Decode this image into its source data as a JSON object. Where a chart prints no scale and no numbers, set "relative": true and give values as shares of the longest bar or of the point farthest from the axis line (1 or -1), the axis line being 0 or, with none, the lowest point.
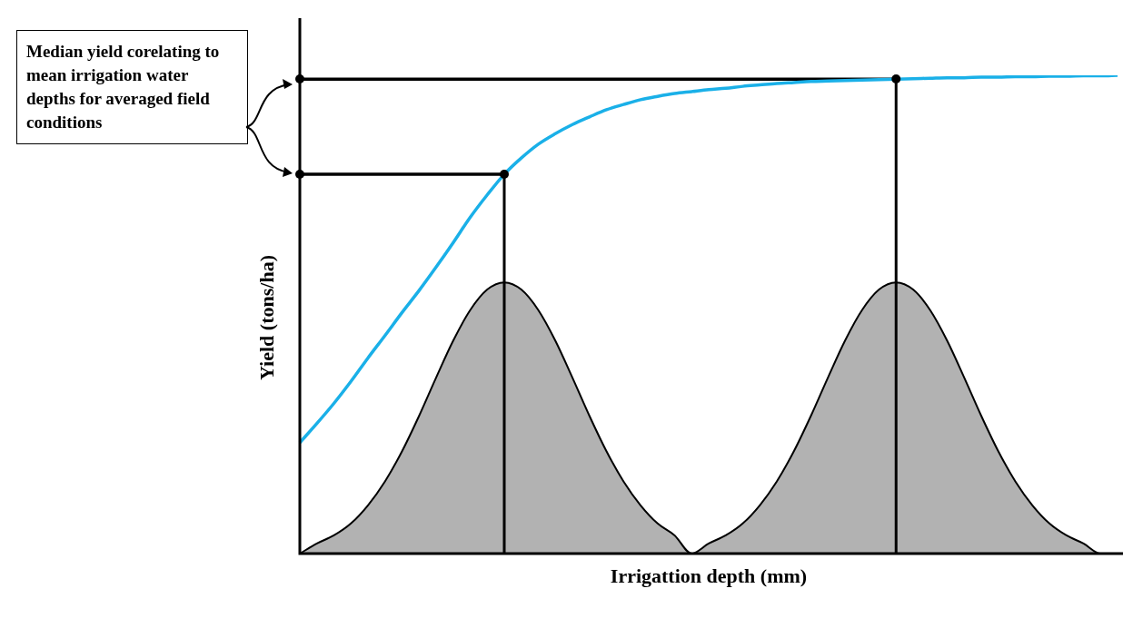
{
  "chart_data": {
    "type": "line",
    "relative": true,
    "xlabel": "Irrigattion depth (mm)",
    "ylabel": "Yield (tons/ha)",
    "legend": false,
    "annotations": [
      "Median yield corelating to mean irrigation water depths for averaged field conditions"
    ],
    "categories": [
      null,
      null,
      null,
      null,
      null,
      null,
      null,
      null,
      null,
      null,
      null,
      null,
      null,
      null,
      null,
      null,
      null,
      null,
      null,
      null,
      null,
      null,
      null,
      null,
      null,
      null,
      null,
      null,
      null,
      null,
      null,
      null,
      null,
      null,
      null,
      null,
      null,
      null,
      null,
      null,
      null,
      null,
      null,
      null,
      null,
      null,
      null,
      null,
      null
    ],
    "series": [
      {
        "type": "area",
        "color": "#000000",
        "values": [
          0,
          0.021,
          0.038,
          0.063,
          0.101,
          0.151,
          0.214,
          0.288,
          0.368,
          0.445,
          0.509,
          0.552,
          0.567,
          0.552,
          0.509,
          0.445,
          0.368,
          0.288,
          0.214,
          0.151,
          0.101,
          0.063,
          0.038,
          0,
          0.021,
          0.038,
          0.063,
          0.101,
          0.151,
          0.214,
          0.288,
          0.368,
          0.445,
          0.509,
          0.552,
          0.567,
          0.552,
          0.509,
          0.445,
          0.368,
          0.288,
          0.214,
          0.151,
          0.101,
          0.063,
          0.038,
          0.021,
          0,
          0
        ]
      },
      {
        "color": "#1ab0e8",
        "values": [
          0.232,
          0.272,
          0.314,
          0.36,
          0.409,
          0.456,
          0.504,
          0.55,
          0.599,
          0.65,
          0.703,
          0.75,
          0.793,
          0.827,
          0.856,
          0.878,
          0.897,
          0.913,
          0.928,
          0.939,
          0.949,
          0.956,
          0.962,
          0.966,
          0.97,
          0.973,
          0.977,
          0.98,
          0.983,
          0.985,
          0.987,
          0.988,
          0.989,
          0.99,
          0.991,
          0.992,
          0.993,
          0.994,
          0.995,
          0.995,
          0.996,
          0.996,
          0.997,
          0.997,
          0.998,
          0.998,
          0.999,
          0.999,
          1
        ]
      },
      {
        "color": "#000000",
        "values": [
          0.992,
          0.992,
          0.992,
          0.992,
          0.992,
          0.992,
          0.992,
          0.992,
          0.992,
          0.992,
          0.992,
          0.992,
          0.992,
          0.992,
          0.992,
          0.992,
          0.992,
          0.992,
          0.992,
          0.992,
          0.992,
          0.992,
          0.992,
          0.992,
          0.992,
          0.992,
          0.992,
          0.992,
          0.992,
          0.992,
          0.992,
          0.992,
          0.992,
          0.992,
          0.992,
          0.992,
          null,
          null,
          null,
          null,
          null,
          null,
          null,
          null,
          null,
          null,
          null,
          null,
          null
        ]
      },
      {
        "color": "#000000",
        "values": [
          0.793,
          0.793,
          0.793,
          0.793,
          0.793,
          0.793,
          0.793,
          0.793,
          0.793,
          0.793,
          0.793,
          0.793,
          0.793,
          null,
          null,
          null,
          null,
          null,
          null,
          null,
          null,
          null,
          null,
          null,
          null,
          null,
          null,
          null,
          null,
          null,
          null,
          null,
          null,
          null,
          null,
          null,
          null,
          null,
          null,
          null,
          null,
          null,
          null,
          null,
          null,
          null,
          null,
          null,
          null
        ]
      }
    ]
  }
}
